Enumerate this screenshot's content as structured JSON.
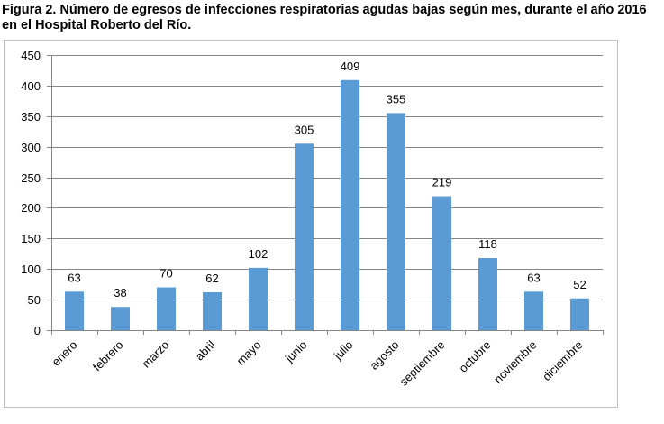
{
  "title": "Figura 2. Número de egresos de infecciones respiratorias agudas bajas según mes, durante el año 2016 en el Hospital Roberto del Río.",
  "chart_data": {
    "type": "bar",
    "title": "Figura 2. Número de egresos de infecciones respiratorias agudas bajas según mes, durante el año 2016 en el Hospital Roberto del Río.",
    "xlabel": "",
    "ylabel": "",
    "categories": [
      "enero",
      "febrero",
      "marzo",
      "abril",
      "mayo",
      "junio",
      "julio",
      "agosto",
      "septiembre",
      "octubre",
      "noviembre",
      "diciembre"
    ],
    "values": [
      63,
      38,
      70,
      62,
      102,
      305,
      409,
      355,
      219,
      118,
      63,
      52
    ],
    "ylim": [
      0,
      450
    ],
    "yticks": [
      0,
      50,
      100,
      150,
      200,
      250,
      300,
      350,
      400,
      450
    ],
    "grid": true,
    "legend": "none",
    "bar_color": "#5b9bd5",
    "grid_color": "#868686"
  }
}
